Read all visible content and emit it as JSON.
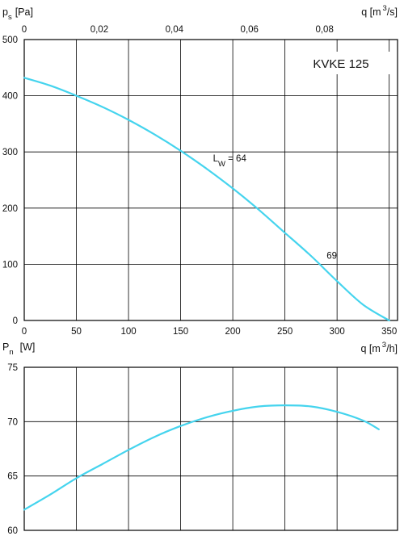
{
  "chart_data": [
    {
      "type": "line",
      "title": "KVKE 125",
      "ylabel": {
        "main": "p",
        "sub": "s",
        "unit": "[Pa]"
      },
      "x_bottom": {
        "unit_prefix": "q [m",
        "unit_sup": "3",
        "unit_suffix": "/h]"
      },
      "x_top": {
        "unit_prefix": "q [m",
        "unit_sup": "3",
        "unit_suffix": "/s]"
      },
      "xlim": [
        0,
        358
      ],
      "ylim": [
        0,
        500
      ],
      "x_ticks": [
        0,
        50,
        100,
        150,
        200,
        250,
        300,
        350
      ],
      "x_tick_labels": [
        "0",
        "50",
        "100",
        "150",
        "200",
        "250",
        "300",
        "350"
      ],
      "x_top_ticks_m3h": [
        0,
        72,
        144,
        216,
        288
      ],
      "x_top_tick_labels": [
        "0",
        "0,02",
        "0,04",
        "0,06",
        "0,08"
      ],
      "y_ticks": [
        0,
        100,
        200,
        300,
        400,
        500
      ],
      "y_tick_labels": [
        "0",
        "100",
        "200",
        "300",
        "400",
        "500"
      ],
      "grid": true,
      "series": [
        {
          "color": "#45d4ee",
          "x": [
            0,
            25,
            50,
            75,
            100,
            125,
            150,
            175,
            200,
            225,
            250,
            275,
            300,
            325,
            350
          ],
          "y": [
            432,
            418,
            400,
            380,
            357,
            331,
            302,
            270,
            235,
            197,
            156,
            115,
            70,
            28,
            0
          ]
        }
      ],
      "annotations": [
        {
          "text": "L",
          "sub": "W",
          "after": " = 64",
          "x": 181,
          "y": 283
        },
        {
          "text": "69",
          "x": 290,
          "y": 110
        }
      ]
    },
    {
      "type": "line",
      "ylabel": {
        "main": "P",
        "sub": "n",
        "unit": "[W]"
      },
      "x_unit": {
        "unit_prefix": "q [m",
        "unit_sup": "3",
        "unit_suffix": "/h]"
      },
      "xlim": [
        0,
        358
      ],
      "ylim": [
        60,
        75
      ],
      "x_ticks": [
        50,
        100,
        150,
        200,
        250,
        300
      ],
      "y_ticks": [
        60,
        65,
        70,
        75
      ],
      "y_tick_labels": [
        "60",
        "65",
        "70",
        "75"
      ],
      "grid": true,
      "series": [
        {
          "color": "#45d4ee",
          "x": [
            0,
            25,
            50,
            75,
            100,
            125,
            150,
            175,
            200,
            225,
            250,
            275,
            300,
            325,
            340
          ],
          "y": [
            61.9,
            63.3,
            64.8,
            66.1,
            67.4,
            68.6,
            69.6,
            70.4,
            71.0,
            71.4,
            71.5,
            71.4,
            70.9,
            70.1,
            69.3
          ]
        }
      ]
    }
  ]
}
